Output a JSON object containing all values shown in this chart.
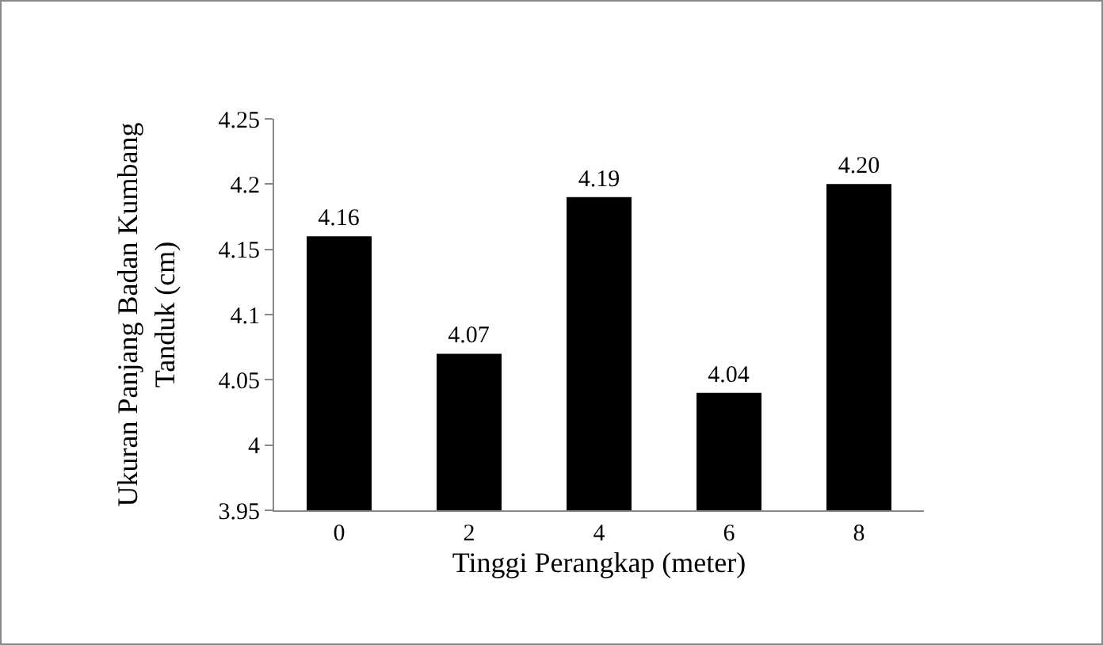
{
  "chart_data": {
    "type": "bar",
    "xlabel": "Tinggi Perangkap (meter)",
    "ylabel": "Ukuran Panjang Badan Kumbang Tanduk (cm)",
    "categories": [
      "0",
      "2",
      "4",
      "6",
      "8"
    ],
    "values": [
      4.16,
      4.07,
      4.19,
      4.04,
      4.2
    ],
    "value_labels": [
      "4.16",
      "4.07",
      "4.19",
      "4.04",
      "4.20"
    ],
    "color": "#000000",
    "ylim": [
      3.95,
      4.25
    ],
    "yticks": [
      3.95,
      4,
      4.05,
      4.1,
      4.15,
      4.2,
      4.25
    ],
    "grid": false
  }
}
